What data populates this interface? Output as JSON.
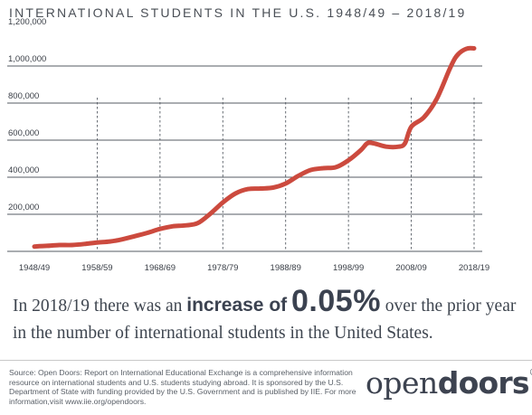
{
  "title": "INTERNATIONAL STUDENTS IN THE U.S. 1948/49 – 2018/19",
  "colors": {
    "line": "#cc4a3e",
    "grid": "#555b63",
    "text": "#3a3f47"
  },
  "chart_data": {
    "type": "line",
    "title": "INTERNATIONAL STUDENTS IN THE U.S. 1948/49 – 2018/19",
    "xlabel": "",
    "ylabel": "",
    "xlim": [
      1948,
      2018
    ],
    "ylim": [
      0,
      1200000
    ],
    "x_ticks": [
      {
        "value": 1948,
        "label": "1948/49"
      },
      {
        "value": 1958,
        "label": "1958/59"
      },
      {
        "value": 1968,
        "label": "1968/69"
      },
      {
        "value": 1978,
        "label": "1978/79"
      },
      {
        "value": 1988,
        "label": "1988/89"
      },
      {
        "value": 1998,
        "label": "1998/99"
      },
      {
        "value": 2008,
        "label": "2008/09"
      },
      {
        "value": 2018,
        "label": "2018/19"
      }
    ],
    "y_ticks": [
      {
        "value": 200000,
        "label": "200,000"
      },
      {
        "value": 400000,
        "label": "400,000"
      },
      {
        "value": 600000,
        "label": "600,000"
      },
      {
        "value": 800000,
        "label": "800,000"
      },
      {
        "value": 1000000,
        "label": "1,000,000"
      },
      {
        "value": 1200000,
        "label": "1,200,000"
      }
    ],
    "grid": "horizontal lines at y ticks; dashed verticals at x ticks",
    "series": [
      {
        "x": [
          1948,
          1950,
          1952,
          1954,
          1956,
          1958,
          1960,
          1962,
          1964,
          1966,
          1968,
          1970,
          1972,
          1974,
          1976,
          1978,
          1980,
          1982,
          1984,
          1986,
          1988,
          1990,
          1992,
          1994,
          1996,
          1998,
          2000,
          2001,
          2002,
          2004,
          2006,
          2007,
          2008,
          2010,
          2012,
          2014,
          2015,
          2016,
          2017,
          2018
        ],
        "y": [
          26000,
          30000,
          34000,
          34000,
          40000,
          48000,
          53000,
          65000,
          82000,
          100000,
          121000,
          135000,
          140000,
          152000,
          203000,
          264000,
          312000,
          336000,
          339000,
          344000,
          366000,
          407000,
          439000,
          449000,
          454000,
          491000,
          547000,
          583000,
          583000,
          565000,
          565000,
          583000,
          672000,
          723000,
          819000,
          975000,
          1044000,
          1079000,
          1095000,
          1095000
        ]
      }
    ]
  },
  "headline": {
    "part1": "In 2018/19 there was an ",
    "emph": "increase of",
    "pct": "0.05%",
    "part2": " over the prior year in the number of international students in the United States."
  },
  "source": "Source: Open Doors: Report on International Educational Exchange is a comprehensive information resource on international students and U.S. students studying abroad.  It is sponsored by the U.S. Department of State with funding provided by the U.S. Government and is published by IIE. For more information,visit www.iie.org/opendoors.",
  "logo": {
    "part1": "open",
    "part2": "doors",
    "mark": "®"
  }
}
